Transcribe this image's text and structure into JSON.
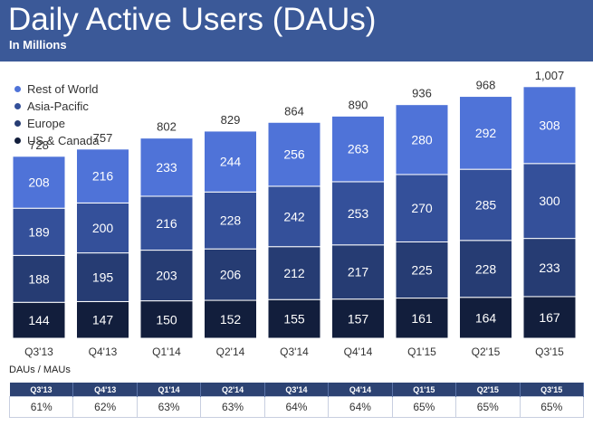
{
  "header": {
    "title": "Daily Active Users (DAUs)",
    "subtitle": "In Millions"
  },
  "colors": {
    "header_bg": "#3b5998",
    "rest_of_world": "#4f73d8",
    "asia_pacific": "#34509a",
    "europe": "#263c73",
    "us_canada": "#121e3c",
    "table_header_bg": "#2d4373"
  },
  "chart_data": {
    "type": "bar",
    "stacked": true,
    "title": "Daily Active Users (DAUs)",
    "subtitle": "In Millions",
    "categories": [
      "Q3'13",
      "Q4'13",
      "Q1'14",
      "Q2'14",
      "Q3'14",
      "Q4'14",
      "Q1'15",
      "Q2'15",
      "Q3'15"
    ],
    "totals": [
      "728",
      "757",
      "802",
      "829",
      "864",
      "890",
      "936",
      "968",
      "1,007"
    ],
    "series": [
      {
        "name": "US & Canada",
        "values": [
          144,
          147,
          150,
          152,
          155,
          157,
          161,
          164,
          167
        ]
      },
      {
        "name": "Europe",
        "values": [
          188,
          195,
          203,
          206,
          212,
          217,
          225,
          228,
          233
        ]
      },
      {
        "name": "Asia-Pacific",
        "values": [
          189,
          200,
          216,
          228,
          242,
          253,
          270,
          285,
          300
        ]
      },
      {
        "name": "Rest of World",
        "values": [
          208,
          216,
          233,
          244,
          256,
          263,
          280,
          292,
          308
        ]
      }
    ],
    "legend_order": [
      "Rest of World",
      "Asia-Pacific",
      "Europe",
      "US & Canada"
    ],
    "legend_position": "top-left",
    "ylim": [
      0,
      1050
    ]
  },
  "dau_mau": {
    "label": "DAUs / MAUs",
    "quarters": [
      "Q3'13",
      "Q4'13",
      "Q1'14",
      "Q2'14",
      "Q3'14",
      "Q4'14",
      "Q1'15",
      "Q2'15",
      "Q3'15"
    ],
    "values": [
      "61%",
      "62%",
      "63%",
      "63%",
      "64%",
      "64%",
      "65%",
      "65%",
      "65%"
    ]
  }
}
